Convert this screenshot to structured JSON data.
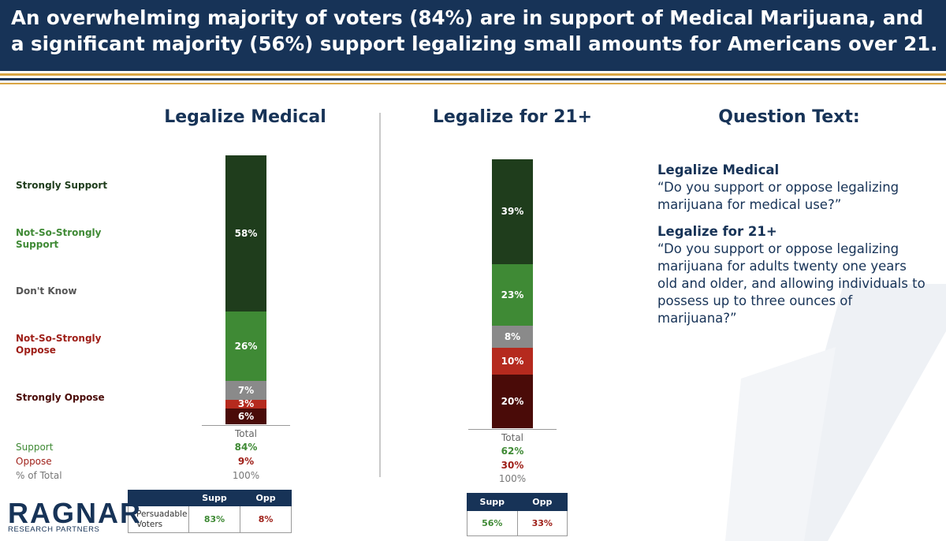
{
  "header": {
    "title": "An overwhelming majority of voters (84%) are in support of Medical Marijuana, and a significant majority (56%) support legalizing small amounts for Americans over 21."
  },
  "colors": {
    "navy": "#173357",
    "gold": "#d9a544",
    "strongly_support": "#1f3d1c",
    "not_so_strongly_support": "#3f8a35",
    "dont_know": "#8a8a8a",
    "not_so_strongly_oppose": "#b52a1e",
    "strongly_oppose": "#4a0b08"
  },
  "row_labels": [
    "Strongly Support",
    "Not-So-Strongly Support",
    "Don't Know",
    "Not-So-Strongly Oppose",
    "Strongly Oppose"
  ],
  "summary_labels": {
    "support": "Support",
    "oppose": "Oppose",
    "pct_total": "% of Total"
  },
  "chart_data": [
    {
      "type": "bar",
      "stacked": true,
      "title": "Legalize Medical",
      "categories": [
        "Total"
      ],
      "series": [
        {
          "name": "Strongly Support",
          "values": [
            58
          ],
          "label": "58%"
        },
        {
          "name": "Not-So-Strongly Support",
          "values": [
            26
          ],
          "label": "26%"
        },
        {
          "name": "Don't Know",
          "values": [
            7
          ],
          "label": "7%"
        },
        {
          "name": "Not-So-Strongly Oppose",
          "values": [
            3
          ],
          "label": "3%"
        },
        {
          "name": "Strongly Oppose",
          "values": [
            6
          ],
          "label": "6%"
        }
      ],
      "totals": {
        "support": "84%",
        "oppose": "9%",
        "pct_total": "100%"
      },
      "persuadable": {
        "row_label": "Persuadable Voters",
        "supp_header": "Supp",
        "opp_header": "Opp",
        "supp": "83%",
        "opp": "8%"
      }
    },
    {
      "type": "bar",
      "stacked": true,
      "title": "Legalize for 21+",
      "categories": [
        "Total"
      ],
      "series": [
        {
          "name": "Strongly Support",
          "values": [
            39
          ],
          "label": "39%"
        },
        {
          "name": "Not-So-Strongly Support",
          "values": [
            23
          ],
          "label": "23%"
        },
        {
          "name": "Don't Know",
          "values": [
            8
          ],
          "label": "8%"
        },
        {
          "name": "Not-So-Strongly Oppose",
          "values": [
            10
          ],
          "label": "10%"
        },
        {
          "name": "Strongly Oppose",
          "values": [
            20
          ],
          "label": "20%"
        }
      ],
      "totals": {
        "support": "62%",
        "oppose": "30%",
        "pct_total": "100%"
      },
      "persuadable": {
        "row_label": "",
        "supp_header": "Supp",
        "opp_header": "Opp",
        "supp": "56%",
        "opp": "33%"
      }
    }
  ],
  "question_text": {
    "heading": "Question Text:",
    "items": [
      {
        "title": "Legalize Medical",
        "text": "“Do you support or oppose legalizing marijuana for medical use?”"
      },
      {
        "title": "Legalize for 21+",
        "text": "“Do you support or oppose legalizing marijuana for adults twenty one years old and older, and allowing individuals to possess up to three ounces of marijuana?”"
      }
    ]
  },
  "logo": {
    "name": "RAGNAR",
    "tagline": "RESEARCH PARTNERS"
  }
}
